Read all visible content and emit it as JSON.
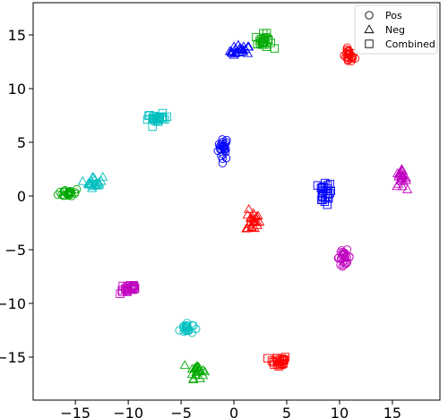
{
  "chart_data": {
    "type": "scatter",
    "title": "",
    "xlabel": "",
    "ylabel": "",
    "xlim": [
      -19,
      19.5
    ],
    "ylim": [
      -19,
      18
    ],
    "xticks": [
      {
        "value": -15,
        "label": "−15"
      },
      {
        "value": -10,
        "label": "−10"
      },
      {
        "value": -5,
        "label": "−5"
      },
      {
        "value": 0,
        "label": "0"
      },
      {
        "value": 5,
        "label": "5"
      },
      {
        "value": 10,
        "label": "10"
      },
      {
        "value": 15,
        "label": "15"
      }
    ],
    "yticks": [
      {
        "value": 15,
        "label": "15"
      },
      {
        "value": 10,
        "label": "10"
      },
      {
        "value": 5,
        "label": "5"
      },
      {
        "value": 0,
        "label": "0"
      },
      {
        "value": -5,
        "label": "−5"
      },
      {
        "value": -10,
        "label": "−10"
      },
      {
        "value": -15,
        "label": "−15"
      }
    ],
    "grid": false,
    "legend_position": "top-right",
    "legend": [
      {
        "label": "Pos",
        "marker": "circle"
      },
      {
        "label": "Neg",
        "marker": "triangle"
      },
      {
        "label": "Combined",
        "marker": "square"
      }
    ],
    "clusters": [
      {
        "marker": "circle",
        "color": "#0000ff",
        "center": [
          -1,
          4.5
        ],
        "spread": [
          0.45,
          1.0
        ],
        "count": 25
      },
      {
        "marker": "triangle",
        "color": "#0000ff",
        "center": [
          0.6,
          13.5
        ],
        "spread": [
          0.9,
          0.5
        ],
        "count": 22
      },
      {
        "marker": "square",
        "color": "#0000ff",
        "center": [
          8.6,
          0.3
        ],
        "spread": [
          0.6,
          1.0
        ],
        "count": 25
      },
      {
        "marker": "circle",
        "color": "#ff0000",
        "center": [
          10.9,
          13.0
        ],
        "spread": [
          0.5,
          0.6
        ],
        "count": 25
      },
      {
        "marker": "triangle",
        "color": "#ff0000",
        "center": [
          1.8,
          -2.3
        ],
        "spread": [
          0.6,
          0.9
        ],
        "count": 24
      },
      {
        "marker": "square",
        "color": "#ff0000",
        "center": [
          4.2,
          -15.4
        ],
        "spread": [
          0.8,
          0.5
        ],
        "count": 25
      },
      {
        "marker": "circle",
        "color": "#00aa00",
        "center": [
          -15.6,
          0.3
        ],
        "spread": [
          0.9,
          0.4
        ],
        "count": 25
      },
      {
        "marker": "triangle",
        "color": "#00aa00",
        "center": [
          -3.5,
          -16.2
        ],
        "spread": [
          0.6,
          0.7
        ],
        "count": 22
      },
      {
        "marker": "square",
        "color": "#00aa00",
        "center": [
          2.8,
          14.4
        ],
        "spread": [
          0.7,
          0.6
        ],
        "count": 22
      },
      {
        "marker": "circle",
        "color": "#00bfbf",
        "center": [
          -4.5,
          -12.3
        ],
        "spread": [
          0.6,
          0.5
        ],
        "count": 22
      },
      {
        "marker": "triangle",
        "color": "#00bfbf",
        "center": [
          -13.2,
          1.3
        ],
        "spread": [
          0.7,
          0.5
        ],
        "count": 20
      },
      {
        "marker": "square",
        "color": "#00bfbf",
        "center": [
          -7.2,
          7.2
        ],
        "spread": [
          0.9,
          0.4
        ],
        "count": 25
      },
      {
        "marker": "circle",
        "color": "#bf00bf",
        "center": [
          10.4,
          -5.7
        ],
        "spread": [
          0.6,
          0.6
        ],
        "count": 25
      },
      {
        "marker": "triangle",
        "color": "#bf00bf",
        "center": [
          15.8,
          1.6
        ],
        "spread": [
          0.5,
          0.7
        ],
        "count": 22
      },
      {
        "marker": "square",
        "color": "#bf00bf",
        "center": [
          -9.9,
          -8.6
        ],
        "spread": [
          0.8,
          0.5
        ],
        "count": 25
      }
    ]
  }
}
